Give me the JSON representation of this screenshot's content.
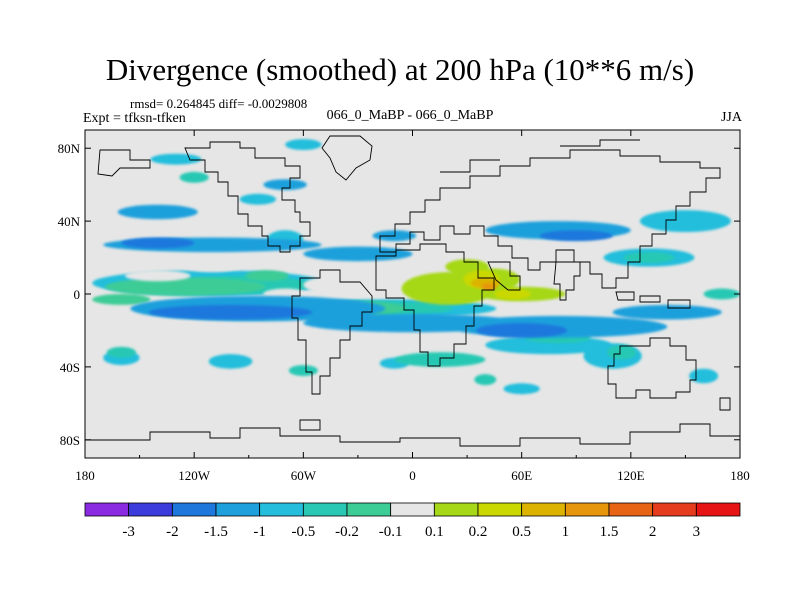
{
  "chart_data": {
    "type": "heatmap",
    "title": "Divergence (smoothed) at 200 hPa (10**6 m/s)",
    "stats": "rmsd= 0.264845 diff= -0.0029808",
    "experiment": "Expt = tfksn-tfken",
    "case": "066_0_MaBP - 066_0_MaBP",
    "season": "JJA",
    "x_range": [
      -180,
      180
    ],
    "y_range": [
      -90,
      90
    ],
    "x_ticks": [
      {
        "value": -180,
        "label": "180"
      },
      {
        "value": -120,
        "label": "120W"
      },
      {
        "value": -60,
        "label": "60W"
      },
      {
        "value": 0,
        "label": "0"
      },
      {
        "value": 60,
        "label": "60E"
      },
      {
        "value": 120,
        "label": "120E"
      },
      {
        "value": 180,
        "label": "180"
      }
    ],
    "y_ticks": [
      {
        "value": 80,
        "label": "80N"
      },
      {
        "value": 40,
        "label": "40N"
      },
      {
        "value": 0,
        "label": "0"
      },
      {
        "value": -40,
        "label": "40S"
      },
      {
        "value": -80,
        "label": "80S"
      }
    ],
    "colorbar": {
      "colors": [
        "#8a2be2",
        "#3c3cdc",
        "#1e78dc",
        "#1ea0dc",
        "#24bedc",
        "#28c8b4",
        "#3ccc96",
        "#e6e6e6",
        "#a6d818",
        "#cad800",
        "#dcb400",
        "#e6960a",
        "#e66414",
        "#e63c1e",
        "#e61414"
      ],
      "labels": [
        "-3",
        "-2",
        "-1.5",
        "-1",
        "-0.5",
        "-0.2",
        "-0.1",
        "0.1",
        "0.2",
        "0.5",
        "1",
        "1.5",
        "2",
        "3"
      ]
    },
    "features": [
      {
        "level": 4,
        "blobs": [
          [
            -112,
            6,
            64,
            7
          ],
          [
            -12,
            -8,
            58,
            5
          ],
          [
            -160,
            -35,
            10,
            4
          ],
          [
            -100,
            -37,
            12,
            4
          ],
          [
            -10,
            -38,
            8,
            3
          ],
          [
            -130,
            74,
            14,
            3
          ],
          [
            -60,
            82,
            10,
            3
          ],
          [
            -85,
            52,
            10,
            3
          ],
          [
            60,
            -52,
            10,
            3
          ],
          [
            160,
            -45,
            8,
            4
          ],
          [
            110,
            -34,
            16,
            7
          ],
          [
            75,
            -28,
            35,
            5
          ],
          [
            130,
            20,
            25,
            5
          ],
          [
            150,
            40,
            25,
            6
          ],
          [
            -70,
            30,
            10,
            5
          ]
        ]
      },
      {
        "level": 5,
        "blobs": [
          [
            -95,
            5,
            40,
            5
          ],
          [
            -20,
            -8,
            42,
            4
          ],
          [
            15,
            -36,
            25,
            4
          ],
          [
            -160,
            -32,
            8,
            3
          ],
          [
            80,
            -24,
            18,
            3
          ],
          [
            115,
            -32,
            8,
            4
          ],
          [
            130,
            20,
            14,
            3
          ],
          [
            170,
            0,
            10,
            3
          ]
        ]
      },
      {
        "level": 6,
        "blobs": [
          [
            -125,
            4,
            44,
            5
          ],
          [
            -30,
            -8,
            26,
            4
          ],
          [
            -160,
            -3,
            16,
            3
          ],
          [
            -80,
            10,
            12,
            3
          ]
        ]
      },
      {
        "level": 7,
        "blobs": [
          [
            -40,
            5,
            20,
            5
          ],
          [
            -110,
            16,
            18,
            4
          ],
          [
            -140,
            10,
            18,
            3
          ],
          [
            -70,
            0,
            12,
            3
          ]
        ]
      },
      {
        "level": 8,
        "blobs": [
          [
            20,
            3,
            26,
            9
          ],
          [
            45,
            8,
            14,
            6
          ],
          [
            60,
            0,
            24,
            4
          ],
          [
            30,
            15,
            12,
            4
          ]
        ]
      },
      {
        "level": 9,
        "blobs": [
          [
            38,
            8,
            10,
            5
          ],
          [
            55,
            0,
            10,
            3
          ]
        ]
      },
      {
        "level": 10,
        "blobs": [
          [
            40,
            6,
            8,
            3
          ]
        ]
      },
      {
        "level": 11,
        "blobs": [
          [
            42,
            4,
            4,
            2
          ]
        ]
      },
      {
        "level": 3,
        "blobs": [
          [
            -85,
            -8,
            70,
            7
          ],
          [
            0,
            -16,
            60,
            5
          ],
          [
            80,
            -18,
            60,
            6
          ],
          [
            140,
            -10,
            30,
            4
          ],
          [
            -110,
            27,
            60,
            4
          ],
          [
            -30,
            22,
            30,
            4
          ],
          [
            -140,
            45,
            22,
            4
          ],
          [
            80,
            35,
            40,
            5
          ],
          [
            -70,
            60,
            12,
            3
          ],
          [
            -10,
            32,
            12,
            3
          ]
        ]
      },
      {
        "level": 2,
        "blobs": [
          [
            -100,
            -10,
            45,
            4
          ],
          [
            60,
            -20,
            25,
            4
          ],
          [
            -140,
            28,
            20,
            3
          ],
          [
            90,
            32,
            20,
            3
          ]
        ]
      },
      {
        "level": 5,
        "blobs": [
          [
            -60,
            -42,
            8,
            3
          ],
          [
            -120,
            64,
            8,
            3
          ],
          [
            40,
            -47,
            6,
            3
          ]
        ]
      }
    ]
  }
}
